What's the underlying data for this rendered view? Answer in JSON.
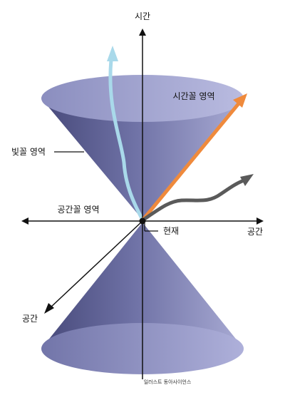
{
  "diagram": {
    "axis_labels": {
      "time": "시간",
      "space_horizontal": "공간",
      "space_depth": "공간"
    },
    "region_labels": {
      "timelike_region": "시간꼴 영역",
      "lightlike_region": "빛꼴 영역",
      "spacelike_region": "공간꼴 영역",
      "present": "현재"
    },
    "credit": "일러스트 동아사이언스",
    "colors": {
      "cone_fill": "#7f82b4",
      "cone_dark": "#4a4c7e",
      "cone_rim": "#a3a6d2",
      "timelike_arrow": "#ef8a3c",
      "spacelike_arrow": "#5a5a5a",
      "light_path": "#a9d9ea",
      "axis": "#111111"
    }
  }
}
